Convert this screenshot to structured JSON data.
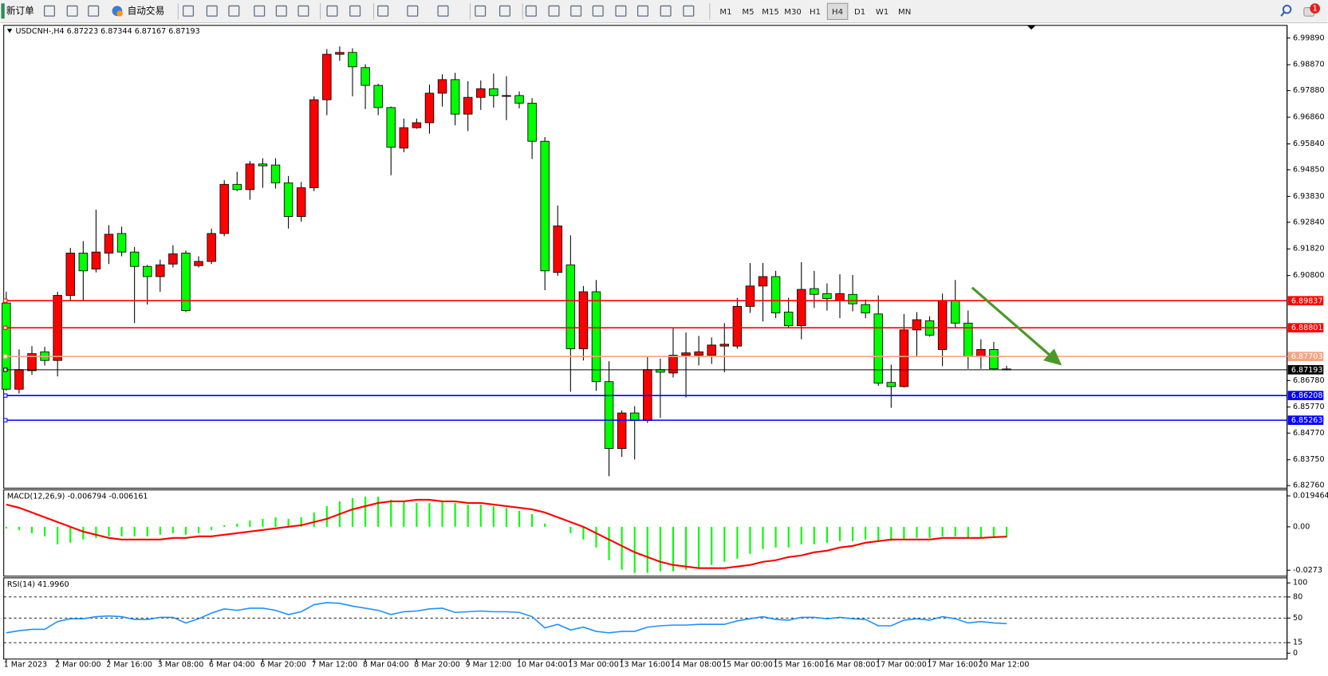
{
  "toolbar": {
    "new_order": "新订单",
    "auto_trading": "自动交易",
    "timeframes": [
      "M1",
      "M5",
      "M15",
      "M30",
      "H1",
      "H4",
      "D1",
      "W1",
      "MN"
    ],
    "active_timeframe": "H4",
    "notifications": 1
  },
  "chart_data": [
    {
      "type": "candlestick",
      "title": "USDCNH-,H4  6.87223 6.87344 6.87167 6.87193",
      "categories": [
        "1 Mar 2023",
        null,
        null,
        null,
        "2 Mar 00:00",
        null,
        null,
        null,
        "2 Mar 16:00",
        null,
        null,
        null,
        "3 Mar 08:00",
        null,
        null,
        null,
        "6 Mar 04:00",
        null,
        null,
        null,
        "6 Mar 20:00",
        null,
        null,
        null,
        "7 Mar 12:00",
        null,
        null,
        null,
        "8 Mar 04:00",
        null,
        null,
        null,
        "8 Mar 20:00",
        null,
        null,
        null,
        "9 Mar 12:00",
        null,
        null,
        null,
        "10 Mar 04:00",
        null,
        null,
        null,
        "13 Mar 00:00",
        null,
        null,
        null,
        "13 Mar 16:00",
        null,
        null,
        null,
        "14 Mar 08:00",
        null,
        null,
        null,
        "15 Mar 00:00",
        null,
        null,
        null,
        "15 Mar 16:00",
        null,
        null,
        null,
        "16 Mar 08:00",
        null,
        null,
        null,
        "17 Mar 00:00",
        null,
        null,
        null,
        "17 Mar 16:00",
        null,
        null,
        null,
        "20 Mar 12:00",
        null,
        null
      ],
      "open": [
        6.8975,
        6.8645,
        6.8716,
        6.8788,
        6.8755,
        6.9004,
        6.9166,
        6.9105,
        6.9166,
        6.9241,
        6.917,
        6.9115,
        6.9076,
        6.9124,
        6.9166,
        6.9118,
        6.9134,
        6.9241,
        6.9429,
        6.9409,
        6.9507,
        6.9503,
        6.9435,
        6.9306,
        6.9416,
        6.9753,
        6.9927,
        6.9934,
        6.9876,
        6.9808,
        6.9723,
        6.9568,
        6.9646,
        6.9665,
        6.9778,
        6.983,
        6.9698,
        6.9762,
        6.9795,
        6.9766,
        6.9769,
        6.974,
        6.9594,
        6.9092,
        6.9121,
        6.88,
        6.9018,
        6.8674,
        6.8418,
        6.8554,
        6.8525,
        6.872,
        6.8707,
        6.8775,
        6.8775,
        6.8775,
        6.881,
        6.881,
        6.8962,
        6.904,
        6.9076,
        6.894,
        6.8888,
        6.903,
        6.9011,
        6.8985,
        6.9008,
        6.8969,
        6.8933,
        6.8671,
        6.8655,
        6.8872,
        6.8907,
        6.8797,
        6.8985,
        6.8898,
        6.8771,
        6.8797,
        6.87223
      ],
      "high": [
        6.9018,
        6.8797,
        6.881,
        6.8807,
        6.9018,
        6.9186,
        6.9212,
        6.9332,
        6.9273,
        6.9267,
        6.9189,
        6.9121,
        6.9141,
        6.9196,
        6.9176,
        6.9154,
        6.926,
        6.9445,
        6.9477,
        6.9519,
        6.9529,
        6.9529,
        6.9461,
        6.9438,
        6.9766,
        6.9947,
        6.9957,
        6.995,
        6.9889,
        6.9814,
        6.9727,
        6.9681,
        6.9681,
        6.9811,
        6.985,
        6.9856,
        6.9824,
        6.9827,
        6.9853,
        6.9843,
        6.9785,
        6.9759,
        6.961,
        6.9348,
        6.9234,
        6.904,
        6.9063,
        6.8752,
        6.8564,
        6.858,
        6.8771,
        6.8762,
        6.8878,
        6.8862,
        6.8849,
        6.8843,
        6.8898,
        6.8995,
        6.9128,
        6.9128,
        6.9098,
        6.8995,
        6.9131,
        6.9098,
        6.905,
        6.9085,
        6.9082,
        6.8988,
        6.9004,
        6.8739,
        6.8933,
        6.894,
        6.8924,
        6.9011,
        6.9063,
        6.8946,
        6.8836,
        6.8826,
        6.87344
      ],
      "low": [
        6.8639,
        6.8629,
        6.87,
        6.8736,
        6.8694,
        6.8985,
        6.8985,
        6.9092,
        6.9124,
        6.9154,
        6.8898,
        6.8969,
        6.9018,
        6.9111,
        6.894,
        6.9111,
        6.9124,
        6.9231,
        6.9403,
        6.937,
        6.9416,
        6.9413,
        6.926,
        6.9286,
        6.9403,
        6.9694,
        6.9902,
        6.9766,
        6.9717,
        6.9694,
        6.9464,
        6.9552,
        6.9642,
        6.9623,
        6.9727,
        6.9655,
        6.9633,
        6.9714,
        6.9723,
        6.9675,
        6.972,
        6.9526,
        6.9024,
        6.9079,
        6.8635,
        6.8755,
        6.8639,
        6.8312,
        6.8386,
        6.8376,
        6.8516,
        6.8535,
        6.869,
        6.8613,
        6.8736,
        6.8742,
        6.871,
        6.88,
        6.8937,
        6.8904,
        6.8917,
        6.8878,
        6.8836,
        6.8956,
        6.8946,
        6.8917,
        6.8943,
        6.8917,
        6.8658,
        6.8574,
        6.8652,
        6.8771,
        6.8846,
        6.8733,
        6.8881,
        6.8723,
        6.8723,
        6.872,
        6.87167
      ],
      "close": [
        6.8645,
        6.872,
        6.8781,
        6.8755,
        6.9004,
        6.9166,
        6.9098,
        6.917,
        6.9238,
        6.917,
        6.9115,
        6.9076,
        6.9121,
        6.9163,
        6.8946,
        6.9134,
        6.9241,
        6.9429,
        6.9409,
        6.9507,
        6.95,
        6.9435,
        6.9306,
        6.9416,
        6.9753,
        6.9927,
        6.9934,
        6.9879,
        6.9808,
        6.9723,
        6.9571,
        6.9646,
        6.9665,
        6.9778,
        6.983,
        6.9698,
        6.9762,
        6.9795,
        6.9769,
        6.9769,
        6.974,
        6.9594,
        6.9098,
        6.927,
        6.88,
        6.9018,
        6.8674,
        6.8418,
        6.8554,
        6.8525,
        6.872,
        6.871,
        6.8775,
        6.8784,
        6.8788,
        6.8814,
        6.8817,
        6.8962,
        6.904,
        6.9076,
        6.8937,
        6.8888,
        6.9027,
        6.9008,
        6.8992,
        6.9011,
        6.8972,
        6.8937,
        6.8668,
        6.8655,
        6.8872,
        6.8911,
        6.8852,
        6.8985,
        6.8898,
        6.8771,
        6.8797,
        6.8723,
        6.87193
      ],
      "up_color": "#ff0000",
      "down_color": "#00ff00",
      "ylim": [
        6.82694,
        7.00376
      ],
      "yticks": [
        {
          "value": 6.9989,
          "label": "6.99890"
        },
        {
          "value": 6.9887,
          "label": "6.98870"
        },
        {
          "value": 6.9788,
          "label": "6.97880"
        },
        {
          "value": 6.9686,
          "label": "6.96860"
        },
        {
          "value": 6.9584,
          "label": "6.95840"
        },
        {
          "value": 6.9485,
          "label": "6.94850"
        },
        {
          "value": 6.9383,
          "label": "6.93830"
        },
        {
          "value": 6.9284,
          "label": "6.92840"
        },
        {
          "value": 6.9182,
          "label": "6.91820"
        },
        {
          "value": 6.908,
          "label": "6.90800"
        },
        {
          "value": 6.8678,
          "label": "6.86780"
        },
        {
          "value": 6.8577,
          "label": "6.85770"
        },
        {
          "value": 6.8477,
          "label": "6.84770"
        },
        {
          "value": 6.8375,
          "label": "6.83750"
        },
        {
          "value": 6.8276,
          "label": "6.82760"
        }
      ],
      "hlines": [
        {
          "value": 6.89837,
          "color": "#ff0000"
        },
        {
          "value": 6.88801,
          "color": "#ff0000"
        },
        {
          "value": 6.87703,
          "color": "#f4a582"
        },
        {
          "value": 6.87193,
          "color": "#000000"
        },
        {
          "value": 6.86208,
          "color": "#0000ff"
        },
        {
          "value": 6.85263,
          "color": "#0000ff"
        }
      ]
    },
    {
      "type": "macd",
      "title": "MACD(12,26,9) -0.006794 -0.006161",
      "series": [
        {
          "kind": "bar",
          "color": "#00ff00",
          "values": [
            -0.001,
            -0.002,
            -0.004,
            -0.006,
            -0.011,
            -0.01,
            -0.008,
            -0.007,
            -0.006,
            -0.006,
            -0.006,
            -0.006,
            -0.005,
            -0.004,
            -0.005,
            -0.004,
            -0.002,
            0.001,
            0.002,
            0.004,
            0.005,
            0.006,
            0.005,
            0.006,
            0.009,
            0.013,
            0.016,
            0.018,
            0.019,
            0.019,
            0.017,
            0.016,
            0.015,
            0.015,
            0.016,
            0.015,
            0.014,
            0.014,
            0.013,
            0.012,
            0.01,
            0.008,
            0.002,
            0,
            -0.004,
            -0.008,
            -0.013,
            -0.021,
            -0.027,
            -0.029,
            -0.029,
            -0.028,
            -0.028,
            -0.027,
            -0.026,
            -0.024,
            -0.022,
            -0.02,
            -0.017,
            -0.014,
            -0.013,
            -0.013,
            -0.011,
            -0.011,
            -0.01,
            -0.009,
            -0.009,
            -0.008,
            -0.009,
            -0.009,
            -0.008,
            -0.007,
            -0.007,
            -0.006,
            -0.006,
            -0.007,
            -0.007,
            -0.007,
            -0.006794
          ]
        },
        {
          "kind": "line",
          "color": "#ff0000",
          "values": [
            0.014,
            0.012,
            0.009,
            0.006,
            0.003,
            0,
            -0.003,
            -0.005,
            -0.007,
            -0.008,
            -0.008,
            -0.008,
            -0.008,
            -0.007,
            -0.007,
            -0.006,
            -0.006,
            -0.005,
            -0.004,
            -0.003,
            -0.002,
            -0.001,
            0,
            0.001,
            0.003,
            0.005,
            0.008,
            0.011,
            0.013,
            0.015,
            0.016,
            0.016,
            0.017,
            0.017,
            0.016,
            0.016,
            0.015,
            0.015,
            0.014,
            0.013,
            0.012,
            0.011,
            0.009,
            0.006,
            0.003,
            0,
            -0.004,
            -0.008,
            -0.012,
            -0.016,
            -0.019,
            -0.022,
            -0.024,
            -0.025,
            -0.026,
            -0.026,
            -0.026,
            -0.025,
            -0.024,
            -0.022,
            -0.021,
            -0.019,
            -0.018,
            -0.016,
            -0.015,
            -0.013,
            -0.012,
            -0.01,
            -0.009,
            -0.008,
            -0.008,
            -0.008,
            -0.008,
            -0.007,
            -0.007,
            -0.007,
            -0.007,
            -0.0065,
            -0.006161
          ]
        }
      ],
      "ylim": [
        -0.0305,
        0.0227
      ],
      "yticks": [
        0.019464,
        {
          "value": 0,
          "label": "0.00"
        },
        -0.0273
      ]
    },
    {
      "type": "line",
      "title": "RSI(14) 41.9960",
      "series": [
        {
          "kind": "line",
          "color": "#1e90ff",
          "values": [
            29,
            32,
            34,
            34,
            45,
            49,
            49,
            52,
            53,
            52,
            48,
            48,
            51,
            51,
            43,
            49,
            57,
            63,
            61,
            64,
            64,
            61,
            55,
            59,
            69,
            72,
            71,
            67,
            64,
            61,
            55,
            59,
            60,
            63,
            64,
            58,
            59,
            60,
            59,
            59,
            58,
            52,
            36,
            41,
            33,
            37,
            31,
            29,
            31,
            31,
            37,
            39,
            40,
            40,
            41,
            41,
            41,
            46,
            49,
            52,
            48,
            47,
            51,
            51,
            49,
            51,
            49,
            48,
            39,
            39,
            47,
            49,
            47,
            52,
            49,
            43,
            45,
            43,
            41.996
          ]
        }
      ],
      "ylim": [
        -7.2,
        107.2
      ],
      "yticks": [
        0,
        15,
        50,
        80,
        100
      ],
      "levels": [
        15,
        50,
        80
      ]
    }
  ]
}
